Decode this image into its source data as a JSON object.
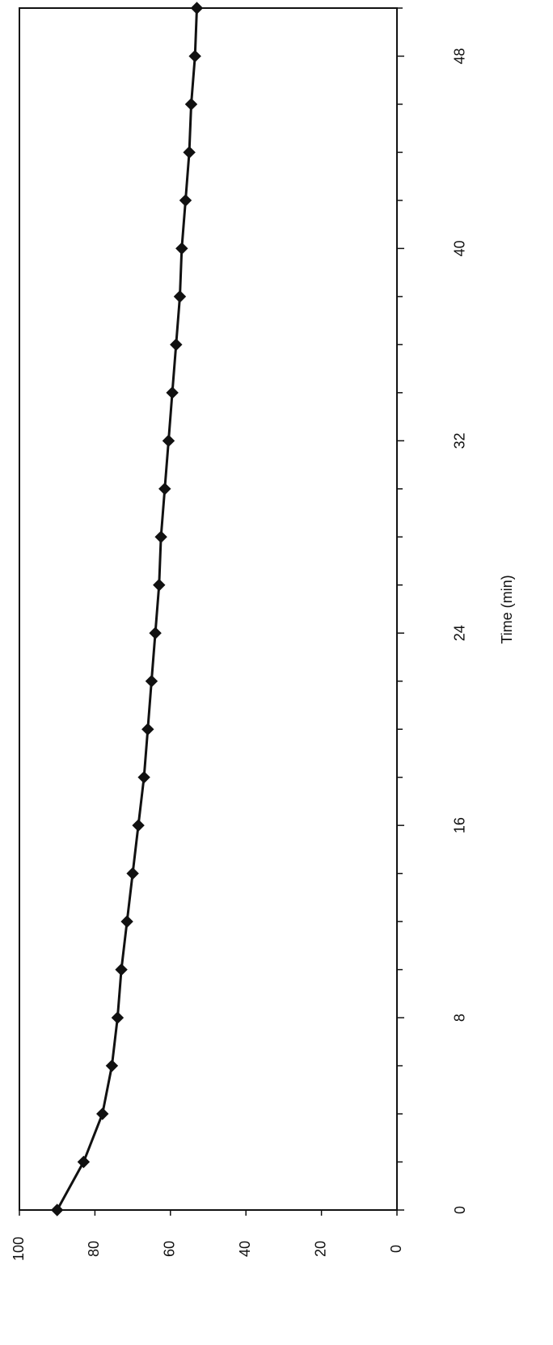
{
  "chart_data": {
    "type": "line",
    "orientation": "rotated 90 degrees clockwise (x axis vertical, increasing upward; y axis horizontal, increasing leftward)",
    "title": "",
    "xlabel": "Time (min)",
    "ylabel": "",
    "xlim": [
      0,
      50
    ],
    "ylim": [
      0,
      100
    ],
    "x_ticks": [
      "0",
      "8",
      "16",
      "24",
      "32",
      "40",
      "48"
    ],
    "y_ticks": [
      "0",
      "20",
      "40",
      "60",
      "80",
      "100"
    ],
    "grid": false,
    "legend": "none",
    "marker": "diamond",
    "line_color": "#111111",
    "series": [
      {
        "x": [
          0,
          2,
          4,
          6,
          8,
          10,
          12,
          14,
          16,
          18,
          20,
          22,
          24,
          26,
          28,
          30,
          32,
          34,
          36,
          38,
          40,
          42,
          44,
          46,
          48,
          50
        ],
        "values": [
          90,
          83,
          78,
          75.5,
          74,
          73,
          71.5,
          70,
          68.5,
          67,
          66,
          65,
          64,
          63,
          62.5,
          61.5,
          60.5,
          59.5,
          58.5,
          57.5,
          57,
          56,
          55,
          54.5,
          53.5,
          53
        ]
      }
    ]
  }
}
